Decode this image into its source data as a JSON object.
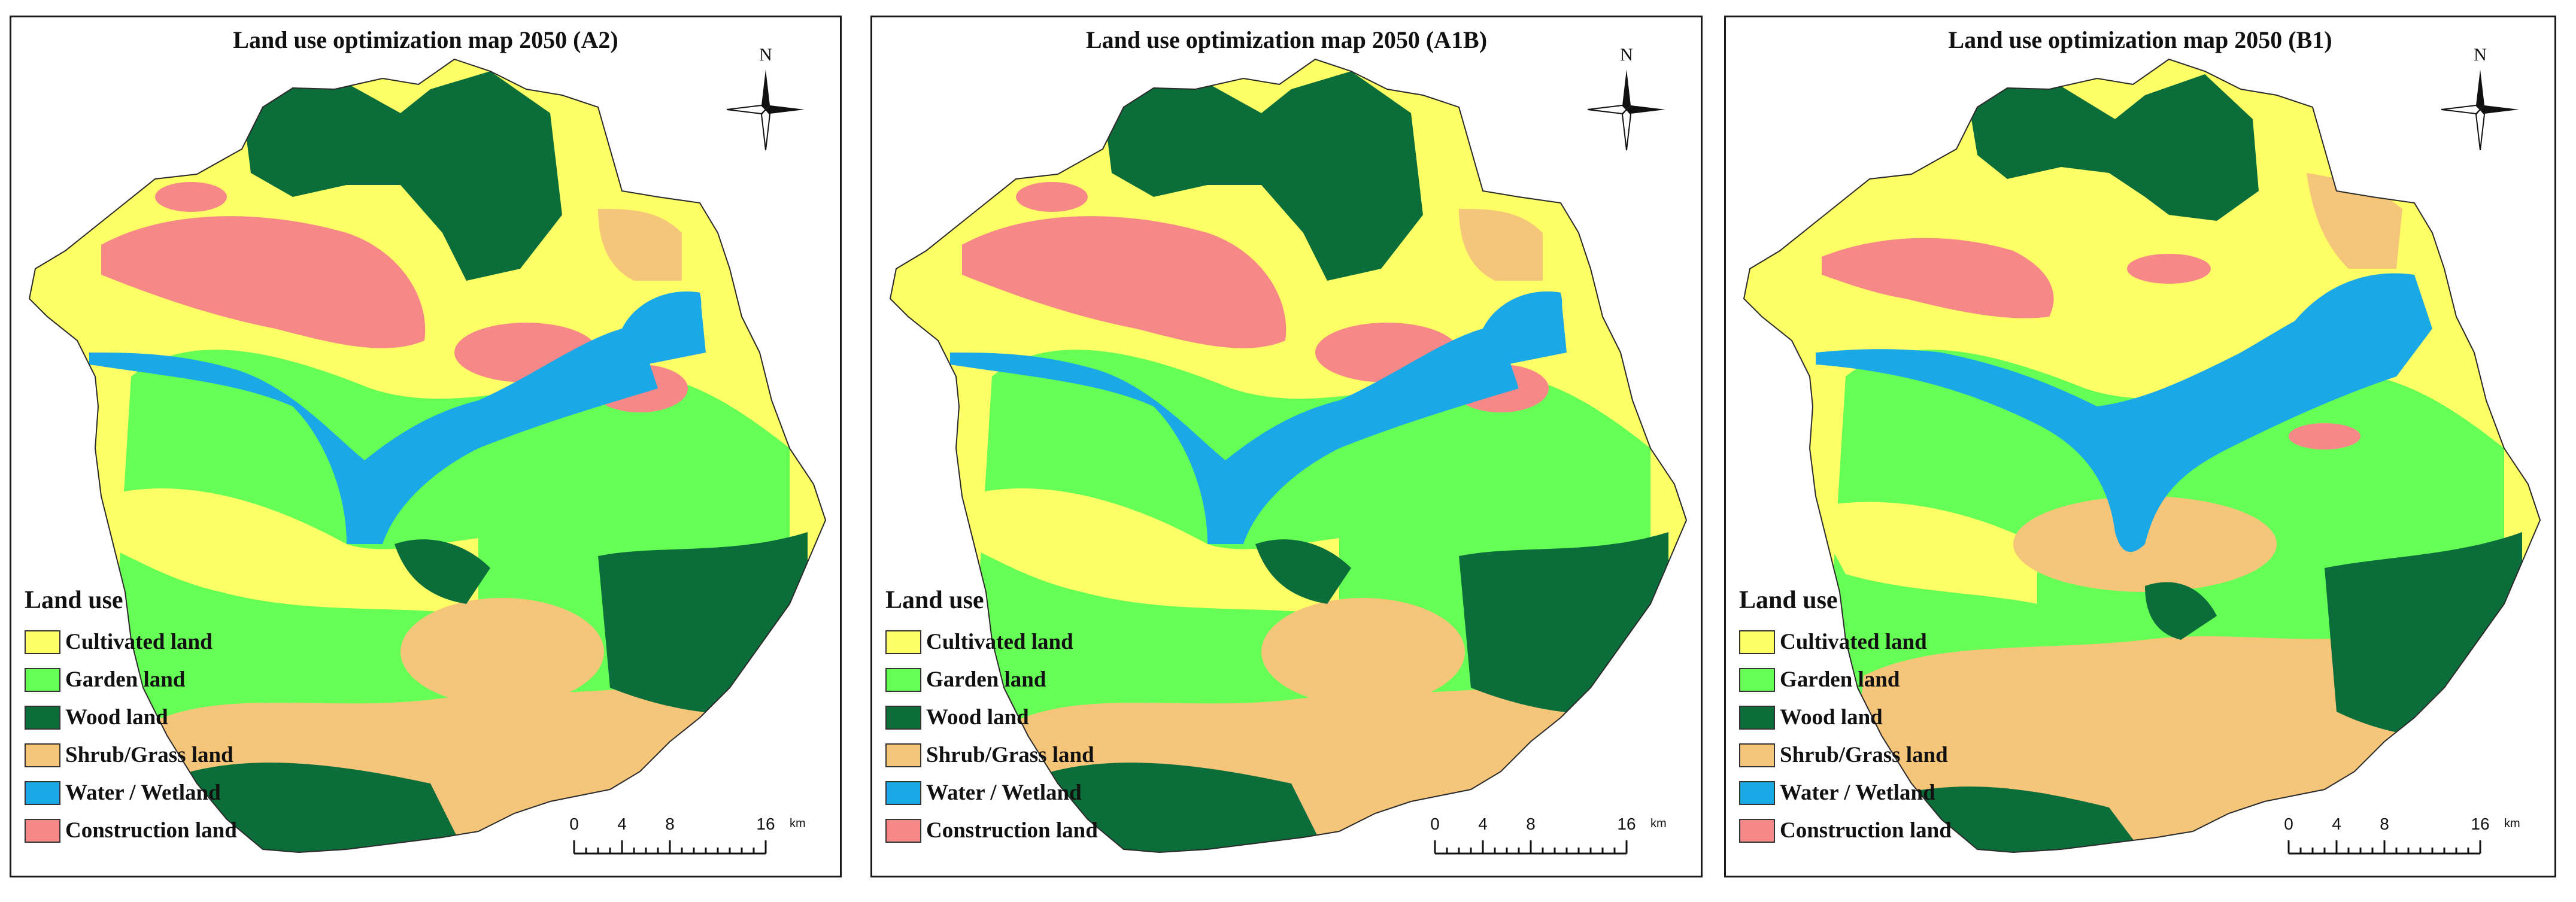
{
  "colors": {
    "cultivated": "#ffff66",
    "garden": "#66ff55",
    "wood": "#0b6e3a",
    "shrub": "#f5c57a",
    "water": "#1aa9e6",
    "construction": "#f78888"
  },
  "panels": [
    {
      "title": "Land use optimization map 2050 (A2)"
    },
    {
      "title": "Land use optimization map 2050 (A1B)"
    },
    {
      "title": "Land use optimization map 2050 (B1)"
    }
  ],
  "compass": {
    "label": "N"
  },
  "legend": {
    "title": "Land use",
    "items": [
      {
        "label": "Cultivated land",
        "color": "#ffff66"
      },
      {
        "label": "Garden land",
        "color": "#66ff55"
      },
      {
        "label": "Wood land",
        "color": "#0b6e3a"
      },
      {
        "label": "Shrub/Grass land",
        "color": "#f5c57a"
      },
      {
        "label": "Water / Wetland",
        "color": "#1aa9e6"
      },
      {
        "label": "Construction land",
        "color": "#f78888"
      }
    ]
  },
  "scalebar": {
    "ticks": [
      "0",
      "4",
      "8",
      "16"
    ],
    "unit": "km"
  }
}
